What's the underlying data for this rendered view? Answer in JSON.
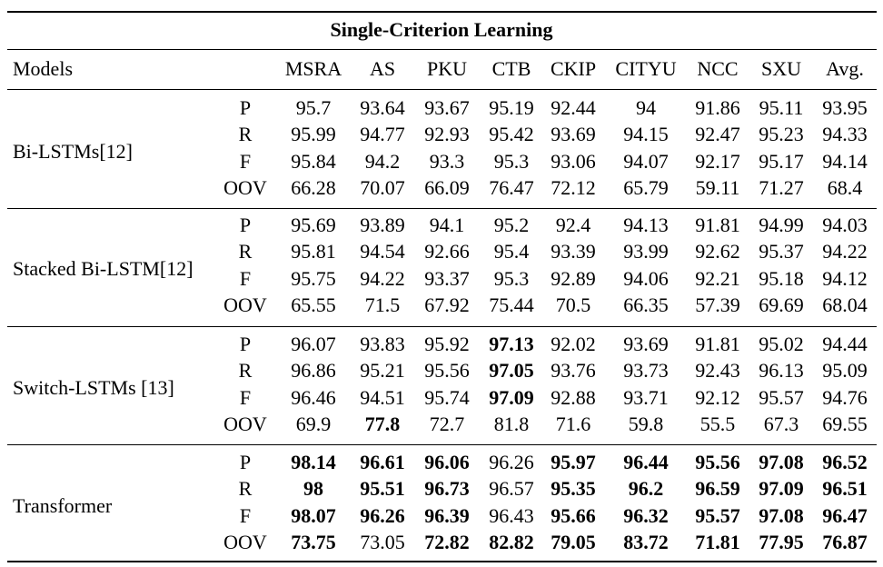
{
  "table": {
    "title": "Single-Criterion Learning",
    "models_header": "Models",
    "columns": [
      "MSRA",
      "AS",
      "PKU",
      "CTB",
      "CKIP",
      "CITYU",
      "NCC",
      "SXU",
      "Avg."
    ],
    "groups": [
      {
        "model": "Bi-LSTMs[12]",
        "rows": [
          {
            "metric": "P",
            "values": [
              "95.7",
              "93.64",
              "93.67",
              "95.19",
              "92.44",
              "94",
              "91.86",
              "95.11",
              "93.95"
            ],
            "bold": []
          },
          {
            "metric": "R",
            "values": [
              "95.99",
              "94.77",
              "92.93",
              "95.42",
              "93.69",
              "94.15",
              "92.47",
              "95.23",
              "94.33"
            ],
            "bold": []
          },
          {
            "metric": "F",
            "values": [
              "95.84",
              "94.2",
              "93.3",
              "95.3",
              "93.06",
              "94.07",
              "92.17",
              "95.17",
              "94.14"
            ],
            "bold": []
          },
          {
            "metric": "OOV",
            "values": [
              "66.28",
              "70.07",
              "66.09",
              "76.47",
              "72.12",
              "65.79",
              "59.11",
              "71.27",
              "68.4"
            ],
            "bold": []
          }
        ]
      },
      {
        "model": "Stacked Bi-LSTM[12]",
        "rows": [
          {
            "metric": "P",
            "values": [
              "95.69",
              "93.89",
              "94.1",
              "95.2",
              "92.4",
              "94.13",
              "91.81",
              "94.99",
              "94.03"
            ],
            "bold": []
          },
          {
            "metric": "R",
            "values": [
              "95.81",
              "94.54",
              "92.66",
              "95.4",
              "93.39",
              "93.99",
              "92.62",
              "95.37",
              "94.22"
            ],
            "bold": []
          },
          {
            "metric": "F",
            "values": [
              "95.75",
              "94.22",
              "93.37",
              "95.3",
              "92.89",
              "94.06",
              "92.21",
              "95.18",
              "94.12"
            ],
            "bold": []
          },
          {
            "metric": "OOV",
            "values": [
              "65.55",
              "71.5",
              "67.92",
              "75.44",
              "70.5",
              "66.35",
              "57.39",
              "69.69",
              "68.04"
            ],
            "bold": []
          }
        ]
      },
      {
        "model": "Switch-LSTMs [13]",
        "rows": [
          {
            "metric": "P",
            "values": [
              "96.07",
              "93.83",
              "95.92",
              "97.13",
              "92.02",
              "93.69",
              "91.81",
              "95.02",
              "94.44"
            ],
            "bold": [
              3
            ]
          },
          {
            "metric": "R",
            "values": [
              "96.86",
              "95.21",
              "95.56",
              "97.05",
              "93.76",
              "93.73",
              "92.43",
              "96.13",
              "95.09"
            ],
            "bold": [
              3
            ]
          },
          {
            "metric": "F",
            "values": [
              "96.46",
              "94.51",
              "95.74",
              "97.09",
              "92.88",
              "93.71",
              "92.12",
              "95.57",
              "94.76"
            ],
            "bold": [
              3
            ]
          },
          {
            "metric": "OOV",
            "values": [
              "69.9",
              "77.8",
              "72.7",
              "81.8",
              "71.6",
              "59.8",
              "55.5",
              "67.3",
              "69.55"
            ],
            "bold": [
              1
            ]
          }
        ]
      },
      {
        "model": "Transformer",
        "rows": [
          {
            "metric": "P",
            "values": [
              "98.14",
              "96.61",
              "96.06",
              "96.26",
              "95.97",
              "96.44",
              "95.56",
              "97.08",
              "96.52"
            ],
            "bold": [
              0,
              1,
              2,
              4,
              5,
              6,
              7,
              8
            ]
          },
          {
            "metric": "R",
            "values": [
              "98",
              "95.51",
              "96.73",
              "96.57",
              "95.35",
              "96.2",
              "96.59",
              "97.09",
              "96.51"
            ],
            "bold": [
              0,
              1,
              2,
              4,
              5,
              6,
              7,
              8
            ]
          },
          {
            "metric": "F",
            "values": [
              "98.07",
              "96.26",
              "96.39",
              "96.43",
              "95.66",
              "96.32",
              "95.57",
              "97.08",
              "96.47"
            ],
            "bold": [
              0,
              1,
              2,
              4,
              5,
              6,
              7,
              8
            ]
          },
          {
            "metric": "OOV",
            "values": [
              "73.75",
              "73.05",
              "72.82",
              "82.82",
              "79.05",
              "83.72",
              "71.81",
              "77.95",
              "76.87"
            ],
            "bold": [
              0,
              2,
              3,
              4,
              5,
              6,
              7,
              8
            ]
          }
        ]
      }
    ]
  }
}
